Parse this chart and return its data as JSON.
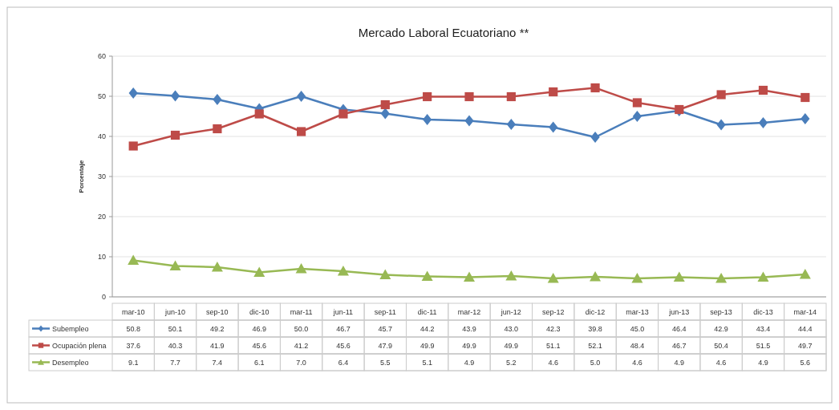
{
  "chart_data": {
    "type": "line",
    "title": "Mercado Laboral Ecuatoriano **",
    "ylabel": "Porcentaje",
    "categories": [
      "mar-10",
      "jun-10",
      "sep-10",
      "dic-10",
      "mar-11",
      "jun-11",
      "sep-11",
      "dic-11",
      "mar-12",
      "jun-12",
      "sep-12",
      "dic-12",
      "mar-13",
      "jun-13",
      "sep-13",
      "dic-13",
      "mar-14"
    ],
    "series": [
      {
        "name": "Subempleo",
        "color": "#4a7ebb",
        "marker": "diamond",
        "values": [
          50.8,
          50.1,
          49.2,
          46.9,
          50.0,
          46.7,
          45.7,
          44.2,
          43.9,
          43.0,
          42.3,
          39.8,
          45.0,
          46.4,
          42.9,
          43.4,
          44.4
        ],
        "value_labels": [
          "50.8",
          "50.1",
          "49.2",
          "46.9",
          "50.0",
          "46.7",
          "45.7",
          "44.2",
          "43.9",
          "43.0",
          "42.3",
          "39.8",
          "45.0",
          "46.4",
          "42.9",
          "43.4",
          "44.4"
        ]
      },
      {
        "name": "Ocupación plena",
        "color": "#be4b48",
        "marker": "square",
        "values": [
          37.6,
          40.3,
          41.9,
          45.6,
          41.2,
          45.6,
          47.9,
          49.9,
          49.9,
          49.9,
          51.1,
          52.1,
          48.4,
          46.7,
          50.4,
          51.5,
          49.7
        ],
        "value_labels": [
          "37.6",
          "40.3",
          "41.9",
          "45.6",
          "41.2",
          "45.6",
          "47.9",
          "49.9",
          "49.9",
          "49.9",
          "51.1",
          "52.1",
          "48.4",
          "46.7",
          "50.4",
          "51.5",
          "49.7"
        ]
      },
      {
        "name": "Desempleo",
        "color": "#98b954",
        "marker": "triangle",
        "values": [
          9.1,
          7.7,
          7.4,
          6.1,
          7.0,
          6.4,
          5.5,
          5.1,
          4.9,
          5.2,
          4.6,
          5.0,
          4.6,
          4.9,
          4.6,
          4.9,
          5.6
        ],
        "value_labels": [
          "9.1",
          "7.7",
          "7.4",
          "6.1",
          "7.0",
          "6.4",
          "5.5",
          "5.1",
          "4.9",
          "5.2",
          "4.6",
          "5.0",
          "4.6",
          "4.9",
          "4.6",
          "4.9",
          "5.6"
        ]
      }
    ],
    "ylim": [
      0,
      60
    ],
    "yticks": [
      0,
      10,
      20,
      30,
      40,
      50,
      60
    ],
    "grid": "y",
    "legend": "bottom left",
    "line_style": "solid"
  }
}
